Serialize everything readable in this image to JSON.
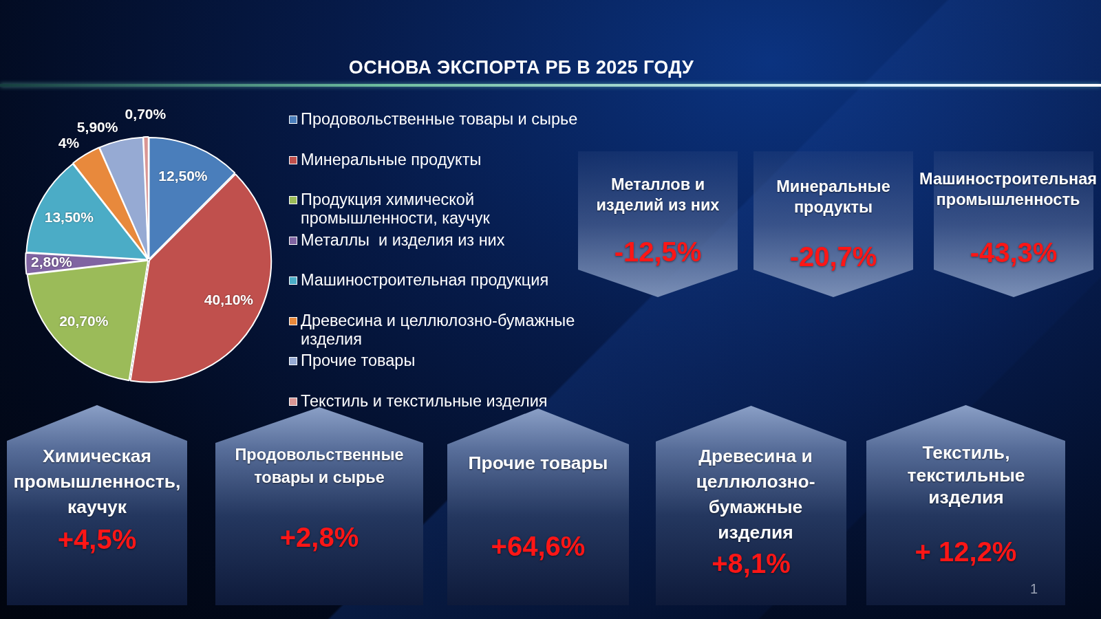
{
  "chart_data": [
    {
      "type": "pie",
      "title": "ОСНОВА ЭКСПОРТА РБ В 2025 ГОДУ",
      "categories": [
        "Продовольственные товары и сырье",
        "Минеральные продукты",
        "Продукция химической промышленности, каучук",
        "Металлы  и изделия из них",
        "Машиностроительная продукция",
        "Древесина и целлюлозно-бумажные изделия",
        "Прочие товары",
        "Текстиль и текстильные изделия"
      ],
      "values": [
        12.5,
        40.1,
        20.7,
        2.8,
        13.5,
        4,
        5.9,
        0.7
      ],
      "colors": [
        "#4a7ebb",
        "#c0504d",
        "#9bbb59",
        "#8064a2",
        "#4bacc6",
        "#e8893c",
        "#96aad3",
        "#d99694"
      ],
      "value_labels": [
        "12,50%",
        "40,10%",
        "20,70%",
        "2,80%",
        "13,50%",
        "4%",
        "5,90%",
        "0,70%"
      ],
      "legend": "right",
      "annotations": [
        "1"
      ]
    },
    {
      "type": "other",
      "annotations": [
        "Металлов и изделий из них",
        "-12,5%",
        "Минеральные продукты",
        "-20,7%",
        "Машиностроительная промышленность",
        "-43,3%",
        "Химическая промышленность, каучук",
        "+4,5%",
        "Продовольственные товары и сырье",
        "+2,8%",
        "Прочие товары",
        "+64,6%",
        "Древесина и целлюлозно-бумажные изделия",
        "+8,1%",
        "Текстиль, текстильные изделия",
        "+ 12,2%"
      ]
    }
  ]
}
